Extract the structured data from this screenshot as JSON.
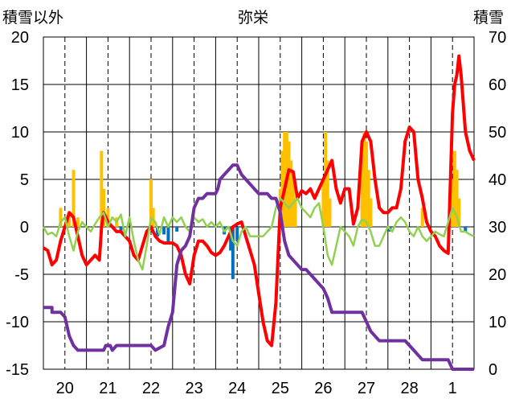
{
  "chart_data": {
    "type": "bar+line",
    "title": "弥栄",
    "ylabel_left": "積雪以外",
    "ylabel_right": "積雪",
    "ylim_left": [
      -15,
      20
    ],
    "ylim_right": [
      0,
      70
    ],
    "yticks_left": [
      "20",
      "15",
      "10",
      "5",
      "0",
      "-5",
      "-10",
      "-15"
    ],
    "yticks_right": [
      "70",
      "60",
      "50",
      "40",
      "30",
      "20",
      "10",
      "0"
    ],
    "x_day_labels": [
      "20",
      "21",
      "22",
      "23",
      "24",
      "25",
      "26",
      "27",
      "28",
      "1"
    ],
    "xlim_days": [
      19.5,
      29.5
    ],
    "grid": true,
    "legend": "none",
    "series": [
      {
        "kind": "bar",
        "axis": "left",
        "color": "#FFC000",
        "points": [
          [
            19.9,
            2
          ],
          [
            20.1,
            1.5
          ],
          [
            20.2,
            6
          ],
          [
            20.3,
            1
          ],
          [
            20.85,
            8
          ],
          [
            20.9,
            4
          ],
          [
            21.0,
            2
          ],
          [
            21.2,
            1
          ],
          [
            22.0,
            5
          ],
          [
            22.05,
            2
          ],
          [
            25.0,
            4
          ],
          [
            25.05,
            8
          ],
          [
            25.1,
            10
          ],
          [
            25.15,
            10
          ],
          [
            25.2,
            9
          ],
          [
            25.25,
            7
          ],
          [
            25.3,
            5
          ],
          [
            25.35,
            3
          ],
          [
            26.0,
            5
          ],
          [
            26.05,
            10
          ],
          [
            26.1,
            7
          ],
          [
            26.15,
            3
          ],
          [
            26.9,
            8
          ],
          [
            26.95,
            10
          ],
          [
            27.0,
            9
          ],
          [
            27.05,
            6
          ],
          [
            27.1,
            3
          ],
          [
            28.3,
            2
          ],
          [
            29.0,
            5
          ],
          [
            29.05,
            8
          ],
          [
            29.1,
            6
          ],
          [
            29.15,
            3
          ]
        ]
      },
      {
        "kind": "bar",
        "axis": "left",
        "color": "#0070C0",
        "points": [
          [
            21.3,
            -0.5
          ],
          [
            22.15,
            -1
          ],
          [
            22.3,
            -0.8
          ],
          [
            22.4,
            -1.8
          ],
          [
            22.6,
            -0.5
          ],
          [
            23.7,
            -0.8
          ],
          [
            23.85,
            -2.5
          ],
          [
            23.9,
            -5.5
          ],
          [
            24.0,
            -1.5
          ],
          [
            27.55,
            -0.5
          ],
          [
            29.3,
            -0.6
          ]
        ]
      },
      {
        "kind": "line",
        "name": "",
        "axis": "left",
        "color": "#FF0000",
        "points": [
          [
            19.5,
            -2.2
          ],
          [
            19.6,
            -2.5
          ],
          [
            19.7,
            -4
          ],
          [
            19.8,
            -3.5
          ],
          [
            19.9,
            -1.5
          ],
          [
            20.0,
            0
          ],
          [
            20.1,
            1.5
          ],
          [
            20.2,
            1
          ],
          [
            20.3,
            -1
          ],
          [
            20.4,
            -3
          ],
          [
            20.5,
            -4
          ],
          [
            20.6,
            -3.5
          ],
          [
            20.7,
            -3
          ],
          [
            20.8,
            -3.5
          ],
          [
            20.85,
            0
          ],
          [
            20.9,
            1.5
          ],
          [
            21.0,
            0.5
          ],
          [
            21.1,
            0
          ],
          [
            21.2,
            -0.5
          ],
          [
            21.3,
            -0.5
          ],
          [
            21.4,
            -1
          ],
          [
            21.5,
            -1.5
          ],
          [
            21.6,
            -3
          ],
          [
            21.7,
            -3.5
          ],
          [
            21.8,
            -2
          ],
          [
            21.9,
            -0.5
          ],
          [
            22.0,
            0
          ],
          [
            22.1,
            -1
          ],
          [
            22.2,
            -1.5
          ],
          [
            22.3,
            -1.7
          ],
          [
            22.5,
            -1.7
          ],
          [
            22.6,
            -2
          ],
          [
            22.7,
            -3
          ],
          [
            22.8,
            -5
          ],
          [
            22.9,
            -6
          ],
          [
            23.0,
            -3
          ],
          [
            23.1,
            -1.5
          ],
          [
            23.2,
            -1.5
          ],
          [
            23.3,
            -2
          ],
          [
            23.4,
            -2.7
          ],
          [
            23.5,
            -3
          ],
          [
            23.6,
            -2.7
          ],
          [
            23.7,
            -2
          ],
          [
            23.8,
            -1
          ],
          [
            23.9,
            0
          ],
          [
            24.0,
            0.3
          ],
          [
            24.1,
            0.5
          ],
          [
            24.2,
            -1
          ],
          [
            24.3,
            -2.5
          ],
          [
            24.4,
            -4
          ],
          [
            24.5,
            -7
          ],
          [
            24.6,
            -10
          ],
          [
            24.7,
            -12
          ],
          [
            24.8,
            -12.5
          ],
          [
            24.9,
            -8
          ],
          [
            25.0,
            2
          ],
          [
            25.1,
            4
          ],
          [
            25.2,
            6
          ],
          [
            25.3,
            5.8
          ],
          [
            25.4,
            3
          ],
          [
            25.5,
            3.8
          ],
          [
            25.6,
            3.5
          ],
          [
            25.7,
            4
          ],
          [
            25.8,
            3
          ],
          [
            25.9,
            4
          ],
          [
            26.0,
            5
          ],
          [
            26.1,
            6
          ],
          [
            26.2,
            7
          ],
          [
            26.3,
            4
          ],
          [
            26.4,
            2.5
          ],
          [
            26.5,
            4
          ],
          [
            26.6,
            4
          ],
          [
            26.7,
            0.3
          ],
          [
            26.8,
            2
          ],
          [
            26.9,
            9
          ],
          [
            27.0,
            10
          ],
          [
            27.1,
            9
          ],
          [
            27.2,
            5
          ],
          [
            27.3,
            2
          ],
          [
            27.4,
            1.5
          ],
          [
            27.5,
            1.5
          ],
          [
            27.6,
            2
          ],
          [
            27.7,
            2
          ],
          [
            27.8,
            4
          ],
          [
            27.9,
            9
          ],
          [
            28.0,
            10.5
          ],
          [
            28.1,
            10
          ],
          [
            28.2,
            5
          ],
          [
            28.3,
            3
          ],
          [
            28.4,
            0.5
          ],
          [
            28.5,
            -0.5
          ],
          [
            28.6,
            -1
          ],
          [
            28.7,
            -2
          ],
          [
            28.8,
            -2.5
          ],
          [
            28.9,
            -2.8
          ],
          [
            29.0,
            12
          ],
          [
            29.05,
            15
          ],
          [
            29.1,
            16
          ],
          [
            29.15,
            18
          ],
          [
            29.2,
            16
          ],
          [
            29.3,
            10
          ],
          [
            29.4,
            8
          ],
          [
            29.5,
            7
          ]
        ]
      },
      {
        "kind": "line",
        "name": "",
        "axis": "left",
        "color": "#92D050",
        "points": [
          [
            19.5,
            0
          ],
          [
            19.6,
            -0.8
          ],
          [
            19.7,
            -0.6
          ],
          [
            19.8,
            -1
          ],
          [
            19.9,
            0.5
          ],
          [
            20.0,
            1
          ],
          [
            20.1,
            -1
          ],
          [
            20.2,
            -2.5
          ],
          [
            20.3,
            -0.5
          ],
          [
            20.4,
            0.5
          ],
          [
            20.5,
            0
          ],
          [
            20.6,
            -0.5
          ],
          [
            20.7,
            0.3
          ],
          [
            20.8,
            1
          ],
          [
            20.9,
            1.5
          ],
          [
            21.0,
            0
          ],
          [
            21.1,
            1
          ],
          [
            21.2,
            0.5
          ],
          [
            21.3,
            1.3
          ],
          [
            21.4,
            -1
          ],
          [
            21.5,
            1
          ],
          [
            21.6,
            -1.5
          ],
          [
            21.7,
            -3.5
          ],
          [
            21.8,
            -4.5
          ],
          [
            21.9,
            -2
          ],
          [
            22.0,
            1
          ],
          [
            22.1,
            0.5
          ],
          [
            22.2,
            -0.8
          ],
          [
            22.3,
            1
          ],
          [
            22.4,
            0
          ],
          [
            22.5,
            1
          ],
          [
            22.6,
            0.5
          ],
          [
            22.7,
            1
          ],
          [
            22.8,
            0
          ],
          [
            22.9,
            -0.5
          ],
          [
            23.0,
            1
          ],
          [
            23.1,
            0.5
          ],
          [
            23.2,
            0.8
          ],
          [
            23.3,
            0
          ],
          [
            23.4,
            0.5
          ],
          [
            23.5,
            0
          ],
          [
            23.6,
            0.5
          ],
          [
            23.7,
            -0.5
          ],
          [
            23.8,
            0
          ],
          [
            23.9,
            -1.5
          ],
          [
            24.0,
            -2
          ],
          [
            24.1,
            -0.5
          ],
          [
            24.2,
            0
          ],
          [
            24.3,
            -1
          ],
          [
            24.4,
            -1
          ],
          [
            24.5,
            -1
          ],
          [
            24.6,
            -1
          ],
          [
            24.7,
            -0.5
          ],
          [
            24.8,
            0
          ],
          [
            24.9,
            2
          ],
          [
            25.0,
            3
          ],
          [
            25.1,
            2.5
          ],
          [
            25.2,
            2
          ],
          [
            25.3,
            2.5
          ],
          [
            25.4,
            3
          ],
          [
            25.5,
            2
          ],
          [
            25.6,
            1.5
          ],
          [
            25.7,
            1
          ],
          [
            25.8,
            2
          ],
          [
            25.9,
            2.5
          ],
          [
            26.0,
            0
          ],
          [
            26.1,
            -3
          ],
          [
            26.2,
            -4
          ],
          [
            26.3,
            -2
          ],
          [
            26.4,
            0
          ],
          [
            26.5,
            -0.5
          ],
          [
            26.6,
            -1
          ],
          [
            26.7,
            -2
          ],
          [
            26.8,
            0
          ],
          [
            26.9,
            0.8
          ],
          [
            27.0,
            0.5
          ],
          [
            27.1,
            -0.5
          ],
          [
            27.2,
            -2
          ],
          [
            27.3,
            -2
          ],
          [
            27.4,
            -1
          ],
          [
            27.5,
            0
          ],
          [
            27.6,
            -0.5
          ],
          [
            27.7,
            0.5
          ],
          [
            27.8,
            1
          ],
          [
            27.9,
            0.5
          ],
          [
            28.0,
            -0.5
          ],
          [
            28.1,
            -1
          ],
          [
            28.2,
            0
          ],
          [
            28.3,
            -1
          ],
          [
            28.4,
            -1.5
          ],
          [
            28.5,
            -1
          ],
          [
            28.6,
            -0.5
          ],
          [
            28.7,
            -0.8
          ],
          [
            28.8,
            -1
          ],
          [
            28.9,
            0.5
          ],
          [
            29.0,
            2
          ],
          [
            29.1,
            1
          ],
          [
            29.2,
            -0.5
          ],
          [
            29.3,
            -0.5
          ],
          [
            29.4,
            -0.8
          ],
          [
            29.5,
            -1
          ]
        ]
      },
      {
        "kind": "line",
        "name": "",
        "axis": "right",
        "color": "#7030A0",
        "points": [
          [
            19.5,
            13
          ],
          [
            19.7,
            13
          ],
          [
            19.7,
            12
          ],
          [
            19.9,
            12
          ],
          [
            20.0,
            11
          ],
          [
            20.1,
            7
          ],
          [
            20.2,
            5
          ],
          [
            20.3,
            4
          ],
          [
            20.4,
            4
          ],
          [
            20.9,
            4
          ],
          [
            20.95,
            5
          ],
          [
            21.05,
            5
          ],
          [
            21.1,
            4
          ],
          [
            21.2,
            5
          ],
          [
            22.0,
            5
          ],
          [
            22.1,
            4
          ],
          [
            22.3,
            5
          ],
          [
            22.4,
            9
          ],
          [
            22.5,
            12
          ],
          [
            22.6,
            22
          ],
          [
            22.7,
            25
          ],
          [
            22.8,
            26
          ],
          [
            22.9,
            28
          ],
          [
            23.0,
            34
          ],
          [
            23.1,
            36
          ],
          [
            23.2,
            36
          ],
          [
            23.3,
            37
          ],
          [
            23.4,
            37
          ],
          [
            23.5,
            37
          ],
          [
            23.55,
            38
          ],
          [
            23.6,
            40
          ],
          [
            23.7,
            41
          ],
          [
            23.8,
            42
          ],
          [
            23.9,
            43
          ],
          [
            24.0,
            43
          ],
          [
            24.1,
            41
          ],
          [
            24.2,
            40
          ],
          [
            24.3,
            39
          ],
          [
            24.4,
            38
          ],
          [
            24.5,
            37
          ],
          [
            24.7,
            37
          ],
          [
            24.8,
            36
          ],
          [
            24.9,
            36
          ],
          [
            25.0,
            33
          ],
          [
            25.1,
            27
          ],
          [
            25.2,
            24
          ],
          [
            25.3,
            23
          ],
          [
            25.4,
            22
          ],
          [
            25.5,
            21
          ],
          [
            25.6,
            21
          ],
          [
            25.7,
            20
          ],
          [
            25.8,
            19
          ],
          [
            25.9,
            18
          ],
          [
            26.0,
            17
          ],
          [
            26.1,
            15
          ],
          [
            26.2,
            12
          ],
          [
            26.3,
            12
          ],
          [
            26.9,
            12
          ],
          [
            27.0,
            10
          ],
          [
            27.1,
            8
          ],
          [
            27.2,
            7
          ],
          [
            27.3,
            6
          ],
          [
            27.9,
            6
          ],
          [
            28.0,
            5
          ],
          [
            28.1,
            4
          ],
          [
            28.2,
            3
          ],
          [
            28.3,
            2
          ],
          [
            28.4,
            2
          ],
          [
            28.9,
            2
          ],
          [
            29.0,
            0
          ],
          [
            29.5,
            0
          ]
        ]
      }
    ]
  }
}
